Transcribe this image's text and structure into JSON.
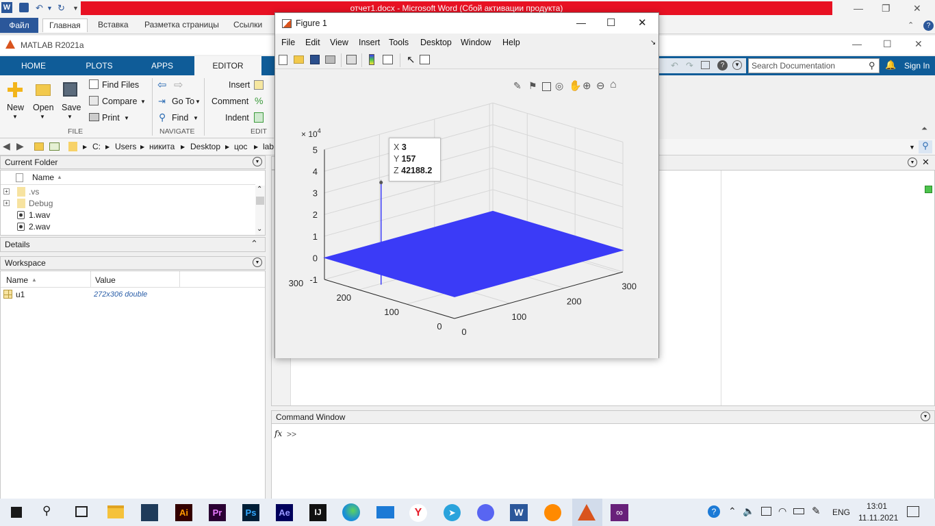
{
  "word": {
    "title": "отчет1.docx  -  Microsoft Word (Сбой активации продукта)",
    "tabs": [
      "Файл",
      "Главная",
      "Вставка",
      "Разметка страницы",
      "Ссылки"
    ]
  },
  "matlab": {
    "title": "MATLAB R2021a",
    "tabs": [
      "HOME",
      "PLOTS",
      "APPS",
      "EDITOR"
    ],
    "search_placeholder": "Search Documentation",
    "sign_in": "Sign In",
    "ribbon": {
      "file": {
        "new": "New",
        "open": "Open",
        "save": "Save",
        "find_files": "Find Files",
        "compare": "Compare",
        "print": "Print",
        "group": "FILE"
      },
      "navigate": {
        "go_to": "Go To",
        "find": "Find",
        "group": "NAVIGATE"
      },
      "edit": {
        "insert": "Insert",
        "comment": "Comment",
        "indent": "Indent",
        "group": "EDIT"
      }
    },
    "path": [
      "C:",
      "Users",
      "никита",
      "Desktop",
      "цос",
      "lab"
    ],
    "current_folder": {
      "title": "Current Folder",
      "column": "Name",
      "items": [
        {
          "name": ".vs",
          "type": "folder"
        },
        {
          "name": "Debug",
          "type": "folder"
        },
        {
          "name": "1.wav",
          "type": "wav"
        },
        {
          "name": "2.wav",
          "type": "wav"
        }
      ]
    },
    "details_title": "Details",
    "workspace": {
      "title": "Workspace",
      "col_name": "Name",
      "col_value": "Value",
      "vars": [
        {
          "name": "u1",
          "value": "272x306 double"
        }
      ]
    },
    "command_window": {
      "title": "Command Window",
      "fx": "fx",
      "prompt": ">>"
    }
  },
  "figure": {
    "title": "Figure 1",
    "menu": [
      "File",
      "Edit",
      "View",
      "Insert",
      "Tools",
      "Desktop",
      "Window",
      "Help"
    ],
    "datatip": {
      "x_label": "X",
      "x": "3",
      "y_label": "Y",
      "y": "157",
      "z_label": "Z",
      "z": "42188.2"
    },
    "exponent": "× 10",
    "exponent_power": "4",
    "z_ticks": [
      "5",
      "4",
      "3",
      "2",
      "1",
      "0",
      "-1"
    ],
    "y_ticks": [
      "300",
      "200",
      "100",
      "0"
    ],
    "x_ticks": [
      "0",
      "100",
      "200",
      "300"
    ],
    "surface_color": "#3b3bf7"
  },
  "chart_data": {
    "type": "surface",
    "x_range": [
      0,
      306
    ],
    "y_range": [
      0,
      272
    ],
    "z_range": [
      -10000,
      50000
    ],
    "z_ticks": [
      -1,
      0,
      1,
      2,
      3,
      4,
      5
    ],
    "z_scale": "×10^4",
    "x_ticks": [
      0,
      100,
      200,
      300
    ],
    "y_ticks": [
      0,
      100,
      200,
      300
    ],
    "grid": true,
    "peak": {
      "x": 3,
      "y": 157,
      "z": 42188.2
    }
  },
  "taskbar": {
    "lang": "ENG",
    "time": "13:01",
    "date": "11.11.2021"
  }
}
